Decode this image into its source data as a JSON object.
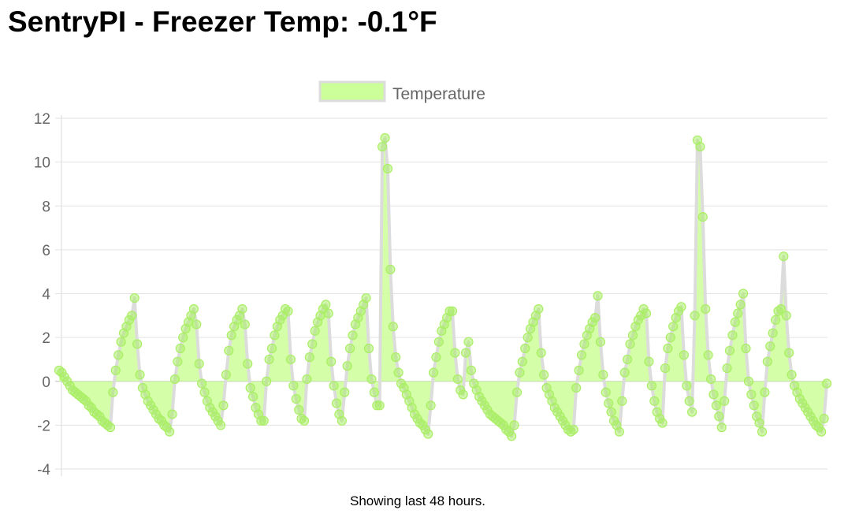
{
  "page": {
    "title": "SentryPI - Freezer Temp: -0.1°F",
    "caption": "Showing last 48 hours."
  },
  "chart_data": {
    "type": "area",
    "title": "",
    "xlabel": "",
    "ylabel": "",
    "ylim": [
      -4,
      12
    ],
    "yticks": [
      12,
      10,
      8,
      6,
      4,
      2,
      0,
      -2,
      -4
    ],
    "grid": true,
    "legend_position": "top",
    "series": [
      {
        "name": "Temperature",
        "fill_color": "#ccff99",
        "line_color": "#dcdcdc",
        "point_color": "#aaee66",
        "values": [
          0.5,
          0.4,
          0.2,
          0.0,
          -0.2,
          -0.4,
          -0.5,
          -0.6,
          -0.7,
          -0.8,
          -0.9,
          -1.1,
          -1.2,
          -1.4,
          -1.5,
          -1.6,
          -1.8,
          -1.9,
          -2.0,
          -2.1,
          -0.5,
          0.5,
          1.2,
          1.8,
          2.2,
          2.5,
          2.8,
          3.0,
          3.8,
          1.7,
          0.3,
          -0.3,
          -0.6,
          -0.9,
          -1.1,
          -1.3,
          -1.5,
          -1.7,
          -1.8,
          -2.0,
          -2.1,
          -2.3,
          -1.5,
          0.1,
          0.9,
          1.5,
          2.0,
          2.4,
          2.7,
          3.0,
          3.3,
          2.6,
          0.8,
          -0.1,
          -0.5,
          -0.9,
          -1.2,
          -1.4,
          -1.6,
          -1.8,
          -2.0,
          -1.1,
          0.3,
          1.4,
          2.1,
          2.5,
          2.8,
          3.0,
          3.3,
          2.6,
          0.8,
          -0.3,
          -0.7,
          -1.2,
          -1.5,
          -1.8,
          -1.8,
          0.0,
          1.0,
          1.5,
          2.1,
          2.5,
          2.8,
          3.0,
          3.3,
          3.2,
          1.0,
          -0.2,
          -0.8,
          -1.3,
          -1.7,
          -1.8,
          0.1,
          1.1,
          1.7,
          2.3,
          2.7,
          3.0,
          3.3,
          3.5,
          3.1,
          0.9,
          -0.2,
          -1.0,
          -1.5,
          -1.8,
          -0.5,
          0.7,
          1.5,
          2.1,
          2.6,
          2.9,
          3.2,
          3.5,
          3.8,
          1.5,
          0.1,
          -0.5,
          -1.1,
          -1.1,
          10.7,
          11.1,
          9.7,
          5.1,
          2.5,
          1.1,
          0.4,
          -0.1,
          -0.3,
          -0.6,
          -0.9,
          -1.2,
          -1.5,
          -1.7,
          -1.9,
          -2.0,
          -2.2,
          -2.4,
          -1.1,
          0.4,
          1.1,
          1.8,
          2.3,
          2.6,
          2.9,
          3.2,
          3.2,
          1.3,
          0.1,
          -0.4,
          -0.6,
          1.3,
          1.8,
          0.5,
          -0.1,
          -0.4,
          -0.7,
          -0.9,
          -1.1,
          -1.3,
          -1.5,
          -1.6,
          -1.7,
          -1.8,
          -1.9,
          -2.0,
          -2.2,
          -2.3,
          -2.5,
          -2.0,
          -0.5,
          0.4,
          0.9,
          1.5,
          2.0,
          2.4,
          2.7,
          3.0,
          3.3,
          1.3,
          0.3,
          -0.3,
          -0.6,
          -0.9,
          -1.2,
          -1.4,
          -1.6,
          -1.8,
          -2.0,
          -2.2,
          -2.3,
          -2.2,
          -0.3,
          0.5,
          1.2,
          1.7,
          2.1,
          2.4,
          2.7,
          2.9,
          3.9,
          1.8,
          0.3,
          -0.5,
          -1.0,
          -1.4,
          -1.8,
          -2.0,
          -2.3,
          -0.9,
          0.4,
          1.0,
          1.7,
          2.1,
          2.5,
          2.8,
          3.0,
          3.3,
          3.1,
          0.9,
          -0.2,
          -0.9,
          -1.4,
          -1.7,
          -1.9,
          0.6,
          1.5,
          2.0,
          2.5,
          2.9,
          3.2,
          3.4,
          1.2,
          -0.2,
          -0.9,
          -1.4,
          3.0,
          11.0,
          10.7,
          7.5,
          3.3,
          1.2,
          0.1,
          -0.6,
          -1.1,
          -1.6,
          -2.1,
          -0.9,
          0.6,
          1.4,
          2.1,
          2.7,
          3.1,
          3.5,
          4.0,
          1.5,
          0.0,
          -0.6,
          -1.1,
          -1.6,
          -1.9,
          -2.3,
          -0.5,
          0.9,
          1.6,
          2.2,
          2.8,
          3.2,
          3.3,
          5.7,
          3.0,
          1.3,
          0.3,
          -0.2,
          -0.5,
          -0.8,
          -1.0,
          -1.2,
          -1.4,
          -1.6,
          -1.8,
          -2.0,
          -2.1,
          -2.3,
          -1.7,
          -0.1
        ]
      }
    ]
  }
}
